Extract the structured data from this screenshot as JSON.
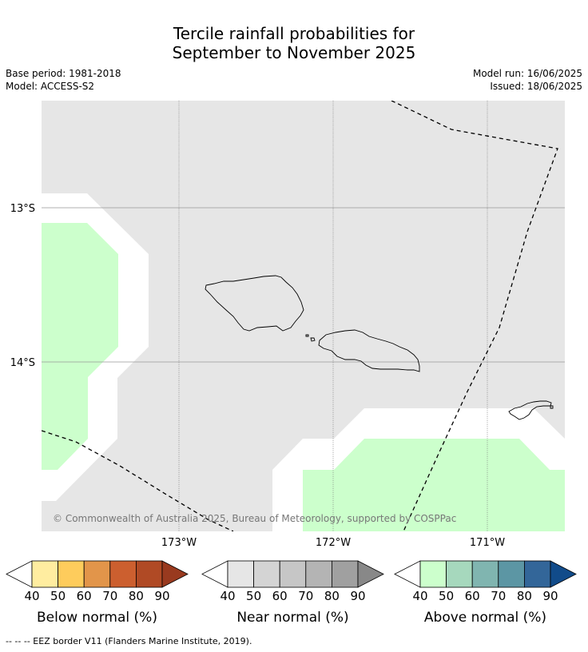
{
  "title_line1": "Tercile rainfall probabilities for",
  "title_line2": "September to November 2025",
  "base_period": "Base period: 1981-2018",
  "model": "Model: ACCESS-S2",
  "model_run": "Model run: 16/06/2025",
  "issued": "Issued: 18/06/2025",
  "map": {
    "lat_labels": [
      "13°S",
      "14°S"
    ],
    "lon_labels": [
      "173°W",
      "172°W",
      "171°W"
    ],
    "copyright": "© Commonwealth of Australia 2025, Bureau of Meteorology, supported by COSPPac",
    "colors": {
      "background": "#e6e6e6",
      "above_40": "#ccffcc",
      "unavailable": "#ffffff",
      "coast": "#000000"
    }
  },
  "colorbars": [
    {
      "label": "Below normal (%)",
      "ticks": [
        "40",
        "50",
        "60",
        "70",
        "80",
        "90"
      ],
      "colors": [
        "#ffeda0",
        "#fecc5c",
        "#e2954a",
        "#cc5f2f",
        "#b04a25",
        "#993a1f"
      ]
    },
    {
      "label": "Near normal (%)",
      "ticks": [
        "40",
        "50",
        "60",
        "70",
        "80",
        "90"
      ],
      "colors": [
        "#e6e6e6",
        "#d4d4d4",
        "#c6c6c6",
        "#b4b4b4",
        "#a0a0a0",
        "#888888"
      ]
    },
    {
      "label": "Above normal (%)",
      "ticks": [
        "40",
        "50",
        "60",
        "70",
        "80",
        "90"
      ],
      "colors": [
        "#ccffcc",
        "#a6d8bd",
        "#80b5b0",
        "#5c96a4",
        "#336699",
        "#114b8a"
      ]
    }
  ],
  "footnote": "--  --  -- EEZ border V11 (Flanders Marine Institute, 2019)."
}
